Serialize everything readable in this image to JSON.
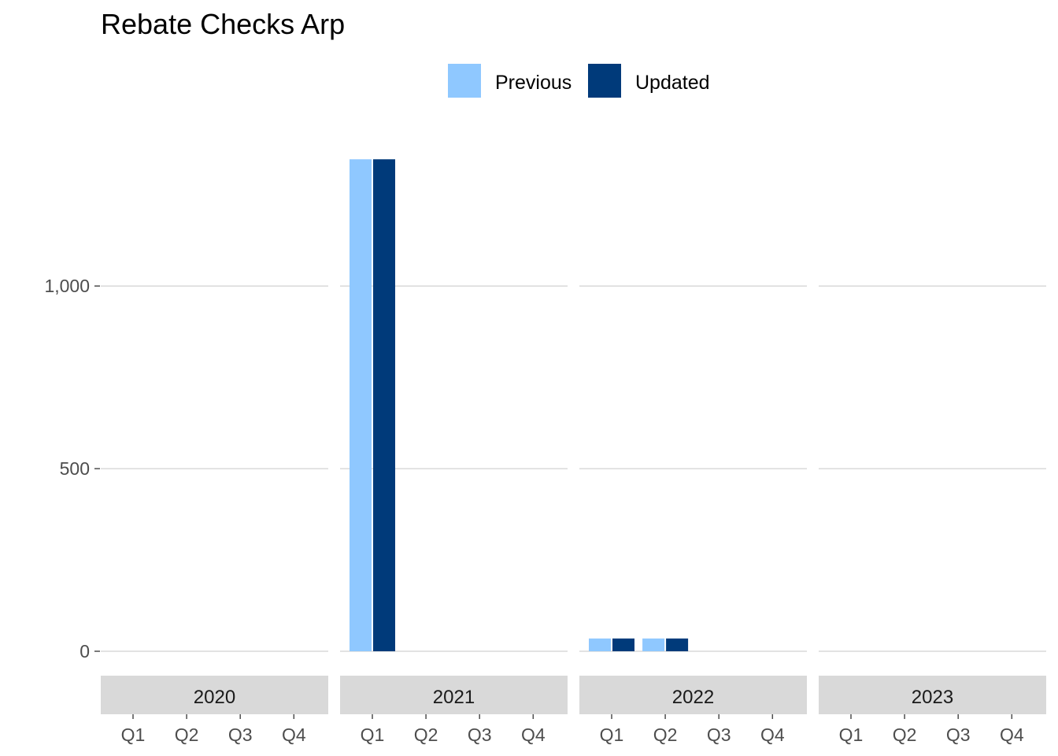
{
  "chart_data": {
    "type": "bar",
    "title": "Rebate Checks Arp",
    "xlabel": "",
    "ylabel": "",
    "ylim": [
      0,
      1450
    ],
    "yticks": [
      0,
      500,
      1000
    ],
    "ytick_labels": [
      "0",
      "500",
      "1,000"
    ],
    "grid": "horizontal",
    "legend_position": "top",
    "facets": [
      "2020",
      "2021",
      "2022",
      "2023"
    ],
    "categories": [
      "Q1",
      "Q2",
      "Q3",
      "Q4"
    ],
    "series": [
      {
        "name": "Previous",
        "color": "#8fc8ff",
        "values": {
          "2020": [
            0,
            0,
            0,
            0
          ],
          "2021": [
            1347,
            0,
            0,
            0
          ],
          "2022": [
            35,
            35,
            0,
            0
          ],
          "2023": [
            0,
            0,
            0,
            0
          ]
        }
      },
      {
        "name": "Updated",
        "color": "#003a7a",
        "values": {
          "2020": [
            0,
            0,
            0,
            0
          ],
          "2021": [
            1347,
            0,
            0,
            0
          ],
          "2022": [
            35,
            35,
            0,
            0
          ],
          "2023": [
            0,
            0,
            0,
            0
          ]
        }
      }
    ]
  },
  "colors": {
    "grid": "#d9d9d9",
    "strip_background": "#d9d9d9",
    "tick": "#4d4d4d"
  }
}
